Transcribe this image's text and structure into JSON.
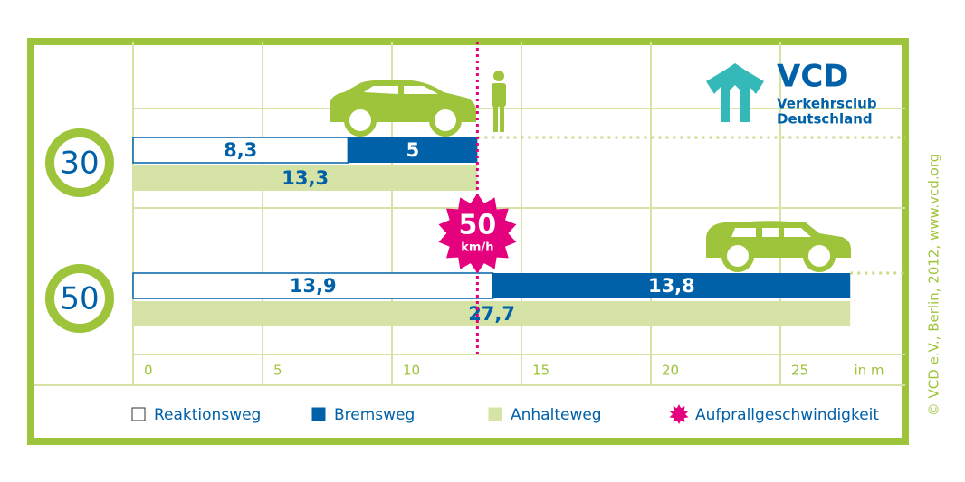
{
  "chart_data": {
    "type": "bar",
    "categories": [
      "30",
      "50"
    ],
    "series": [
      {
        "name": "Reaktionsweg",
        "color": "#ffffff",
        "values": [
          8.3,
          13.9
        ],
        "value_labels": [
          "8,3",
          "13,9"
        ]
      },
      {
        "name": "Bremsweg",
        "color": "#0061a8",
        "values": [
          5,
          13.8
        ],
        "value_labels": [
          "5",
          "13,8"
        ]
      },
      {
        "name": "Anhalteweg",
        "color": "#d5e4a6",
        "values": [
          13.3,
          27.7
        ],
        "value_labels": [
          "13,3",
          "27,7"
        ]
      }
    ],
    "impact": {
      "name": "Aufprallgeschwindigkeit",
      "value": 13.3,
      "badge": "50",
      "badge_unit": "km/h",
      "color": "#e5007d"
    },
    "xlabel": "in m",
    "xlim": [
      0,
      30
    ],
    "xticks": [
      0,
      5,
      10,
      15,
      20,
      25
    ],
    "grid": true,
    "logo": {
      "name": "VCD",
      "line1": "Verkehrsclub",
      "line2": "Deutschland"
    },
    "credit": "© VCD e.V., Berlin, 2012, www.vcd.org"
  }
}
